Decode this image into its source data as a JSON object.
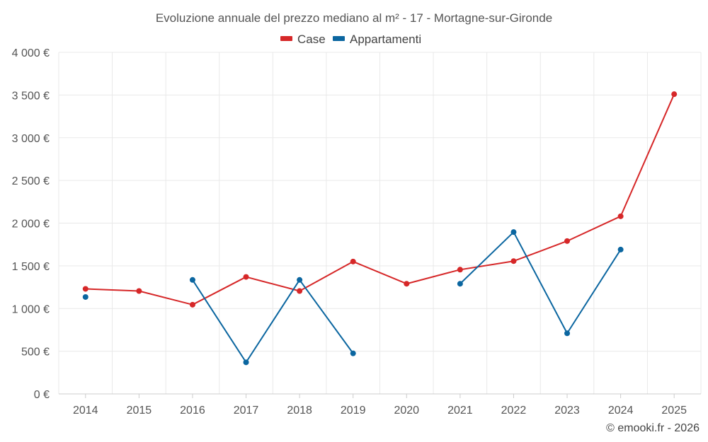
{
  "chart_data": {
    "type": "line",
    "title": "Evoluzione annuale del prezzo mediano al m² - 17 - Mortagne-sur-Gironde",
    "categories": [
      "2014",
      "2015",
      "2016",
      "2017",
      "2018",
      "2019",
      "2020",
      "2021",
      "2022",
      "2023",
      "2024",
      "2025"
    ],
    "ylim": [
      0,
      4000
    ],
    "yticks": [
      0,
      500,
      1000,
      1500,
      2000,
      2500,
      3000,
      3500,
      4000
    ],
    "ytick_labels": [
      "0 €",
      "500 €",
      "1 000 €",
      "1 500 €",
      "2 000 €",
      "2 500 €",
      "3 000 €",
      "3 500 €",
      "4 000 €"
    ],
    "xlabel": "",
    "ylabel": "",
    "grid": true,
    "legend_position": "top-center",
    "series": [
      {
        "name": "Case",
        "color": "#d62728",
        "values": [
          1230,
          1205,
          1045,
          1370,
          1205,
          1550,
          1290,
          1455,
          1555,
          1790,
          2080,
          3510
        ]
      },
      {
        "name": "Appartamenti",
        "color": "#0b66a0",
        "values": [
          1135,
          null,
          1335,
          370,
          1335,
          475,
          null,
          1290,
          1895,
          710,
          1690,
          null
        ]
      }
    ]
  },
  "credit": "© emooki.fr - 2026"
}
